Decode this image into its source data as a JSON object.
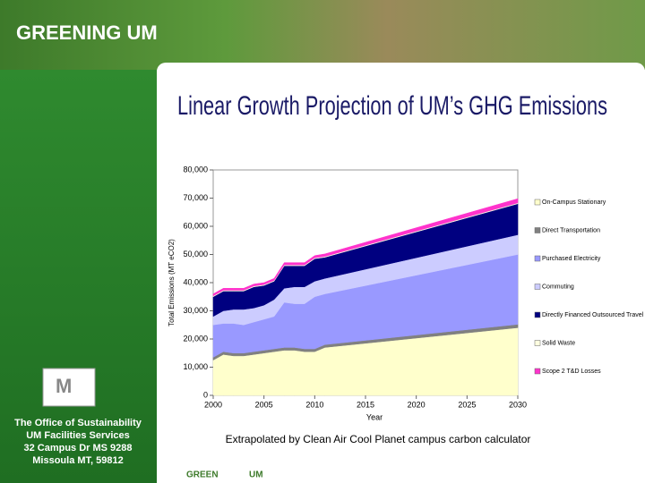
{
  "header": {
    "brand": "GREENING UM"
  },
  "sidebar": {
    "lines": [
      "The Office of Sustainability",
      "UM Facilities Services",
      "32 Campus Dr MS 9288",
      "Missoula MT, 59812"
    ]
  },
  "footer": {
    "caption": "Extrapolated by Clean Air Cool Planet campus carbon calculator",
    "logo_left": "GREEN",
    "logo_right": "UM"
  },
  "chart_data": {
    "type": "stacked_area",
    "title": "Linear Growth Projection of UM’s GHG Emissions",
    "x_label": "Year",
    "y_label": "Total Emissions (MT eCO2)",
    "x": [
      2000,
      2001,
      2002,
      2003,
      2004,
      2005,
      2006,
      2007,
      2008,
      2009,
      2010,
      2011,
      2030
    ],
    "xlim": [
      2000,
      2030
    ],
    "xticks": [
      2000,
      2005,
      2010,
      2015,
      2020,
      2025,
      2030
    ],
    "ylim": [
      0,
      80000
    ],
    "yticks": [
      0,
      {
        "value": 10000,
        "label": "10,000"
      },
      {
        "value": 20000,
        "label": "20,000"
      },
      {
        "value": 30000,
        "label": "30,000"
      },
      {
        "value": 40000,
        "label": "40,000"
      },
      {
        "value": 50000,
        "label": "50,000"
      },
      {
        "value": 60000,
        "label": "60,000"
      },
      {
        "value": 70000,
        "label": "70,000"
      },
      {
        "value": 80000,
        "label": "80,000"
      }
    ],
    "legend": "right",
    "series": [
      {
        "name": "On-Campus Stationary",
        "color": "#ffffcc",
        "values": [
          12500,
          14500,
          14000,
          14000,
          14500,
          15000,
          15500,
          16000,
          16000,
          15500,
          15500,
          17000,
          24000
        ]
      },
      {
        "name": "Direct Transportation",
        "color": "#808080",
        "values": [
          1000,
          1000,
          1000,
          1000,
          1000,
          1000,
          1000,
          1000,
          1000,
          1000,
          1000,
          1000,
          1200
        ]
      },
      {
        "name": "Purchased Electricity",
        "color": "#9999ff",
        "values": [
          11500,
          10000,
          10500,
          10000,
          10500,
          11000,
          11500,
          16000,
          15500,
          16000,
          18500,
          18000,
          24800
        ]
      },
      {
        "name": "Commuting",
        "color": "#ccccff",
        "values": [
          3000,
          4500,
          5000,
          5500,
          5000,
          5000,
          6000,
          5000,
          6000,
          6000,
          5500,
          5500,
          7000
        ]
      },
      {
        "name": "Directly Financed Outsourced Travel",
        "color": "#000080",
        "values": [
          7000,
          7000,
          6500,
          6500,
          7500,
          7000,
          6500,
          8000,
          7500,
          7500,
          8000,
          7500,
          11000
        ]
      },
      {
        "name": "Solid Waste",
        "color": "#ffffe0",
        "values": [
          300,
          300,
          300,
          300,
          300,
          300,
          300,
          300,
          300,
          300,
          300,
          300,
          300
        ]
      },
      {
        "name": "Scope 2 T&D Losses",
        "color": "#ff33cc",
        "values": [
          700,
          700,
          700,
          700,
          700,
          700,
          700,
          800,
          800,
          800,
          800,
          900,
          1500
        ]
      }
    ]
  }
}
